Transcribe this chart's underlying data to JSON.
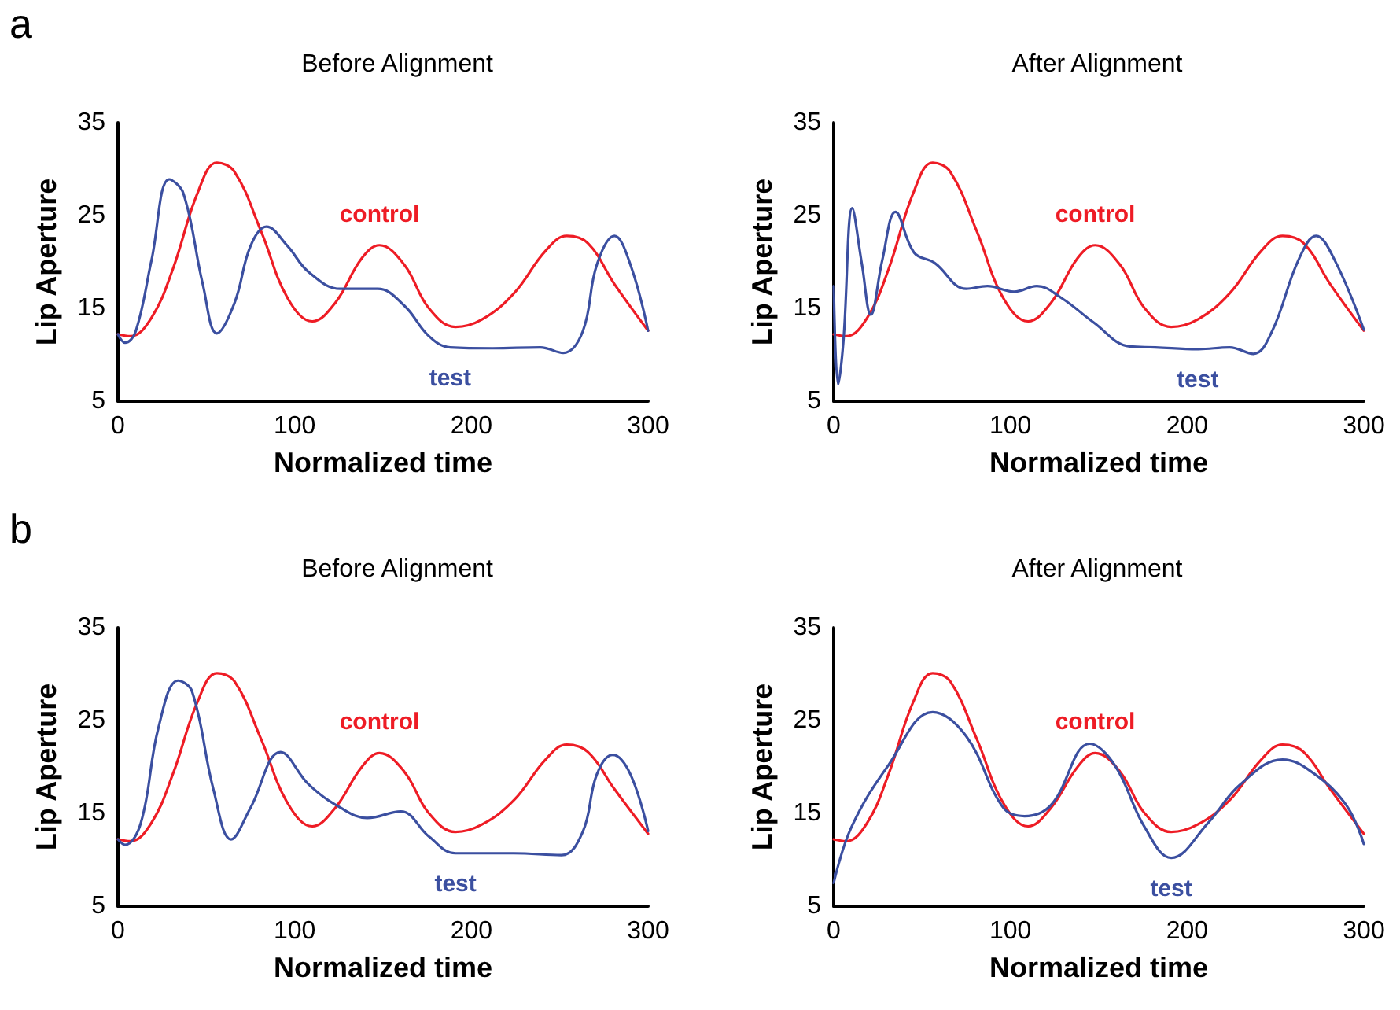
{
  "chart_data": [
    {
      "type": "line",
      "title": "Before Alignment",
      "xlabel": "Normalized time",
      "ylabel": "Lip Aperture",
      "annotations": [
        "a"
      ],
      "xlim": [
        0,
        300
      ],
      "xticks": [
        0,
        100,
        200,
        300
      ],
      "ylim": [
        5,
        35
      ],
      "yticks": [
        5,
        15,
        25,
        35
      ],
      "grid": false,
      "legend": false,
      "series": [
        {
          "name": "control",
          "color": "#ee1c25",
          "x": [
            0,
            7,
            19,
            31,
            45,
            56,
            66,
            81,
            96,
            110,
            123,
            138,
            148,
            162,
            176,
            191,
            206,
            224,
            242,
            254,
            266,
            281,
            300
          ],
          "values": [
            12.2,
            12.0,
            14.0,
            19.2,
            27.4,
            30.7,
            29.7,
            23.3,
            16.1,
            13.6,
            15.6,
            20.4,
            21.8,
            19.7,
            15.0,
            13.0,
            13.8,
            16.6,
            21.2,
            22.8,
            22.0,
            17.6,
            12.6
          ]
        },
        {
          "name": "test",
          "color": "#3b4fa0",
          "x": [
            0,
            4,
            10,
            19,
            29,
            37,
            48,
            56,
            66,
            75,
            84,
            96,
            108,
            126,
            147,
            162,
            176,
            188,
            212,
            239,
            252,
            263,
            271,
            281,
            290,
            300
          ],
          "values": [
            12.2,
            11.3,
            12.5,
            20.2,
            28.9,
            27.4,
            17.6,
            12.3,
            15.6,
            21.7,
            23.8,
            21.7,
            18.9,
            17.1,
            17.1,
            15.3,
            12.0,
            10.8,
            10.7,
            10.8,
            10.2,
            12.5,
            19.7,
            22.8,
            19.7,
            12.6
          ]
        }
      ]
    },
    {
      "type": "line",
      "title": "After Alignment",
      "xlabel": "Normalized time",
      "ylabel": "Lip Aperture",
      "xlim": [
        0,
        300
      ],
      "xticks": [
        0,
        100,
        200,
        300
      ],
      "ylim": [
        5,
        35
      ],
      "yticks": [
        5,
        15,
        25,
        35
      ],
      "grid": false,
      "legend": false,
      "series": [
        {
          "name": "control",
          "color": "#ee1c25",
          "x": [
            0,
            7,
            19,
            31,
            45,
            56,
            66,
            81,
            96,
            110,
            123,
            138,
            148,
            162,
            176,
            191,
            206,
            224,
            242,
            254,
            266,
            281,
            300
          ],
          "values": [
            12.2,
            12.0,
            14.0,
            19.2,
            27.4,
            30.7,
            29.7,
            23.3,
            16.1,
            13.6,
            15.6,
            20.4,
            21.8,
            19.7,
            15.0,
            13.0,
            13.8,
            16.6,
            21.2,
            22.8,
            22.0,
            17.6,
            12.6
          ]
        },
        {
          "name": "test",
          "color": "#3b4fa0",
          "x": [
            0,
            2.5,
            5.5,
            10.5,
            16,
            21,
            27.5,
            35,
            45.5,
            57,
            75,
            87,
            102,
            115,
            129,
            147,
            167.5,
            182,
            206,
            224,
            237.5,
            248,
            263,
            273,
            283.5,
            300
          ],
          "values": [
            17.4,
            6.8,
            11.5,
            25.8,
            19.7,
            14.3,
            20.2,
            25.4,
            21.0,
            19.9,
            17.1,
            17.4,
            16.8,
            17.4,
            16.1,
            13.5,
            10.9,
            10.8,
            10.6,
            10.8,
            10.1,
            12.5,
            20.2,
            22.8,
            20.2,
            12.7
          ]
        }
      ]
    },
    {
      "type": "line",
      "title": "Before Alignment",
      "xlabel": "Normalized time",
      "ylabel": "Lip Aperture",
      "annotations": [
        "b"
      ],
      "xlim": [
        0,
        300
      ],
      "xticks": [
        0,
        100,
        200,
        300
      ],
      "ylim": [
        5,
        35
      ],
      "yticks": [
        5,
        15,
        25,
        35
      ],
      "grid": false,
      "legend": false,
      "series": [
        {
          "name": "control",
          "color": "#ee1c25",
          "x": [
            0,
            7,
            19,
            31,
            45,
            56,
            66,
            81,
            96,
            110,
            123,
            138,
            148,
            162,
            176,
            191,
            206,
            224,
            242,
            254,
            266,
            281,
            300
          ],
          "values": [
            12.2,
            12.0,
            14.0,
            19.2,
            27.0,
            30.1,
            29.2,
            23.0,
            16.1,
            13.6,
            15.6,
            20.0,
            21.5,
            19.5,
            15.0,
            13.0,
            13.8,
            16.4,
            20.8,
            22.4,
            21.6,
            17.6,
            12.8
          ]
        },
        {
          "name": "test",
          "color": "#3b4fa0",
          "x": [
            0,
            4,
            13,
            23,
            34,
            42,
            54,
            64,
            75,
            92,
            108,
            126,
            141,
            160,
            176,
            191,
            224,
            251,
            263,
            271,
            280,
            290,
            300
          ],
          "values": [
            12.2,
            11.6,
            14.0,
            24.3,
            29.3,
            28.1,
            17.6,
            12.2,
            15.6,
            21.6,
            18.1,
            15.6,
            14.5,
            15.2,
            12.5,
            10.7,
            10.7,
            10.5,
            13.0,
            19.2,
            21.3,
            19.2,
            13.1
          ]
        }
      ]
    },
    {
      "type": "line",
      "title": "After Alignment",
      "xlabel": "Normalized time",
      "ylabel": "Lip Aperture",
      "xlim": [
        0,
        300
      ],
      "xticks": [
        0,
        100,
        200,
        300
      ],
      "ylim": [
        5,
        35
      ],
      "yticks": [
        5,
        15,
        25,
        35
      ],
      "grid": false,
      "legend": false,
      "series": [
        {
          "name": "control",
          "color": "#ee1c25",
          "x": [
            0,
            7,
            19,
            31,
            45,
            56,
            66,
            81,
            96,
            110,
            123,
            138,
            148,
            162,
            176,
            191,
            206,
            224,
            242,
            254,
            266,
            281,
            300
          ],
          "values": [
            12.2,
            12.0,
            14.0,
            19.2,
            27.0,
            30.1,
            29.2,
            23.0,
            16.1,
            13.6,
            15.6,
            20.0,
            21.5,
            19.5,
            15.0,
            13.0,
            13.8,
            16.4,
            20.8,
            22.4,
            21.6,
            17.6,
            12.8
          ]
        },
        {
          "name": "test",
          "color": "#3b4fa0",
          "x": [
            0,
            10,
            31,
            56,
            75,
            96,
            108,
            123,
            145,
            159,
            176,
            191,
            212,
            230,
            254,
            271,
            290,
            300
          ],
          "values": [
            7.5,
            13.5,
            20.2,
            25.9,
            23.3,
            15.6,
            14.7,
            15.9,
            22.5,
            20.2,
            13.5,
            10.2,
            14.0,
            18.1,
            20.8,
            19.4,
            15.9,
            11.7
          ]
        }
      ]
    }
  ]
}
